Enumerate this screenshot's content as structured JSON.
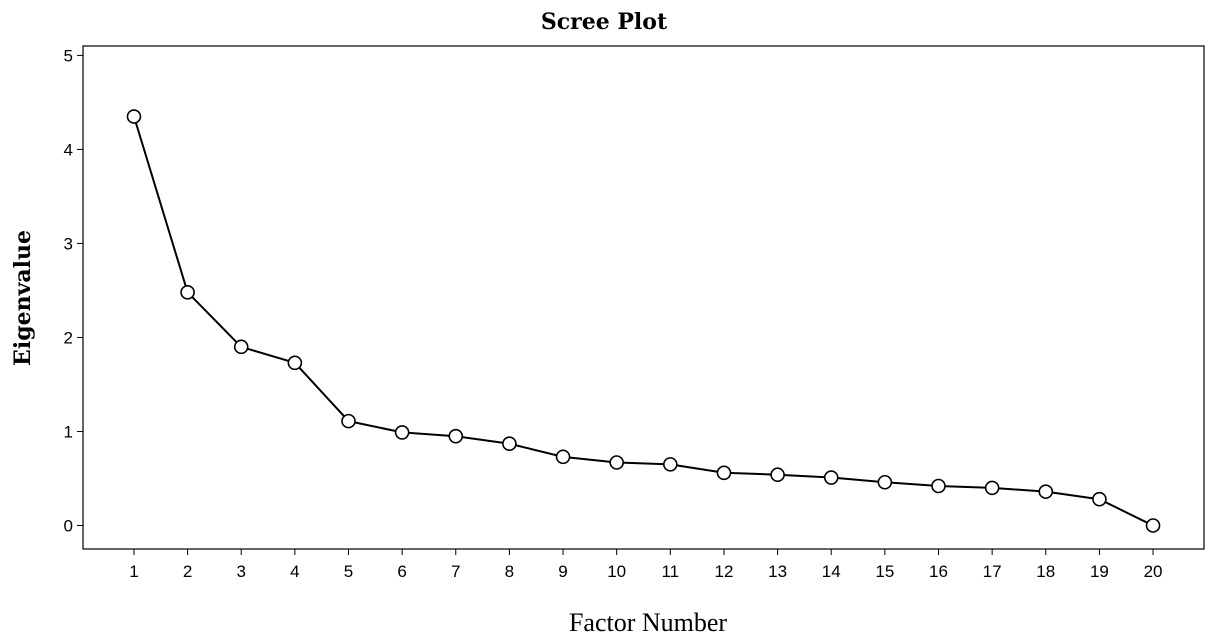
{
  "chart_data": {
    "type": "line",
    "title": "Scree Plot",
    "xlabel": "Factor Number",
    "ylabel": "Eigenvalue",
    "x": [
      1,
      2,
      3,
      4,
      5,
      6,
      7,
      8,
      9,
      10,
      11,
      12,
      13,
      14,
      15,
      16,
      17,
      18,
      19,
      20
    ],
    "x_tick_labels": [
      "1",
      "2",
      "3",
      "4",
      "5",
      "6",
      "7",
      "8",
      "9",
      "10",
      "11",
      "12",
      "13",
      "14",
      "15",
      "16",
      "17",
      "18",
      "19",
      "20"
    ],
    "y_tick_labels": [
      "0",
      "1",
      "2",
      "3",
      "4",
      "5"
    ],
    "series": [
      {
        "values": [
          4.35,
          2.48,
          1.9,
          1.73,
          1.11,
          0.99,
          0.95,
          0.87,
          0.73,
          0.67,
          0.65,
          0.56,
          0.54,
          0.51,
          0.46,
          0.42,
          0.4,
          0.36,
          0.28,
          0.0
        ]
      }
    ],
    "xlim": [
      0.05,
      20.95
    ],
    "ylim": [
      -0.25,
      5.1
    ],
    "grid": false,
    "legend": "none",
    "colors": {
      "line": "#000000",
      "marker": "#000000",
      "background": "#ffffff"
    }
  }
}
